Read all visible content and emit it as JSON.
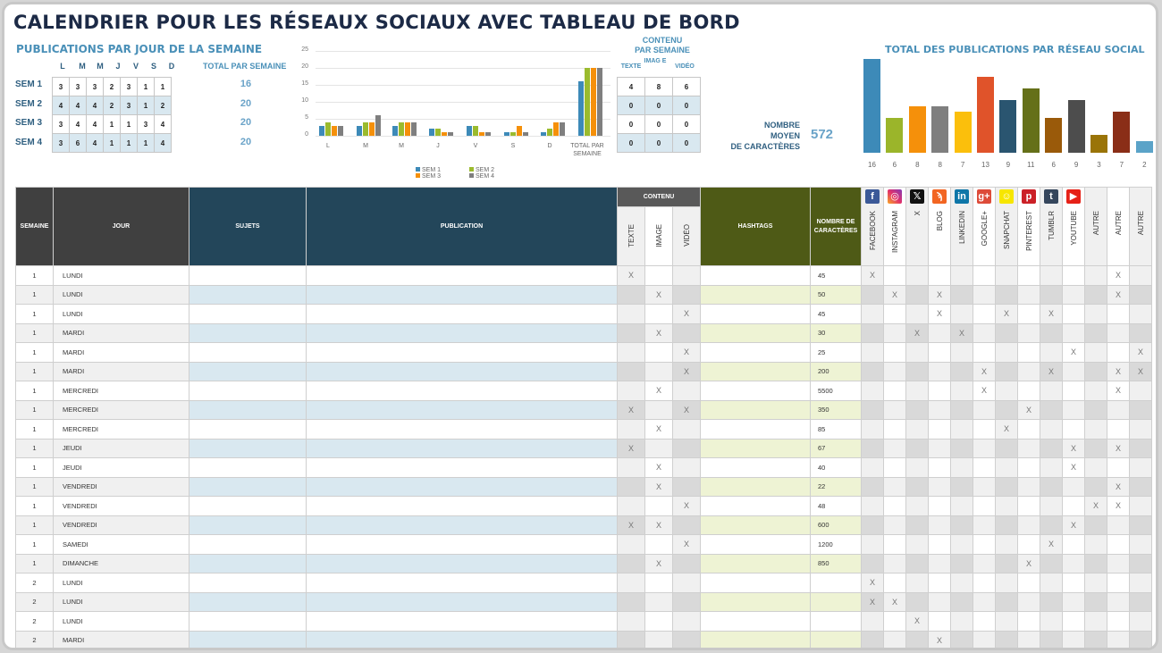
{
  "title": "CALENDRIER POUR LES RÉSEAUX SOCIAUX AVEC TABLEAU DE BORD",
  "weekday_summary": {
    "title": "PUBLICATIONS PAR JOUR DE LA SEMAINE",
    "days": [
      "L",
      "M",
      "M",
      "J",
      "V",
      "S",
      "D"
    ],
    "total_header": "TOTAL PAR SEMAINE",
    "weeks": [
      {
        "label": "SEM 1",
        "values": [
          3,
          3,
          3,
          2,
          3,
          1,
          1
        ],
        "total": 16
      },
      {
        "label": "SEM 2",
        "values": [
          4,
          4,
          4,
          2,
          3,
          1,
          2
        ],
        "total": 20
      },
      {
        "label": "SEM 3",
        "values": [
          3,
          4,
          4,
          1,
          1,
          3,
          4
        ],
        "total": 20
      },
      {
        "label": "SEM 4",
        "values": [
          3,
          6,
          4,
          1,
          1,
          1,
          4
        ],
        "total": 20
      }
    ]
  },
  "content_per_week": {
    "title_line1": "CONTENU",
    "title_line2": "PAR SEMAINE",
    "headers": [
      "TEXTE",
      "IMAG E",
      "VIDÉO"
    ],
    "rows": [
      [
        4,
        8,
        6
      ],
      [
        0,
        0,
        0
      ],
      [
        0,
        0,
        0
      ],
      [
        0,
        0,
        0
      ]
    ]
  },
  "average_chars": {
    "label_line1": "NOMBRE",
    "label_line2": "MOYEN",
    "label_line3": "DE CARACTÈRES",
    "value": "572"
  },
  "network_chart": {
    "title": "TOTAL DES PUBLICATIONS PAR RÉSEAU SOCIAL"
  },
  "chart_data": [
    {
      "type": "bar",
      "title": "",
      "categories": [
        "L",
        "M",
        "M",
        "J",
        "V",
        "S",
        "D",
        "TOTAL PAR SEMAINE"
      ],
      "series": [
        {
          "name": "SEM 1",
          "color": "#3d8ab8",
          "values": [
            3,
            3,
            3,
            2,
            3,
            1,
            1,
            16
          ]
        },
        {
          "name": "SEM 2",
          "color": "#9bbb2e",
          "values": [
            4,
            4,
            4,
            2,
            3,
            1,
            2,
            20
          ]
        },
        {
          "name": "SEM 3",
          "color": "#f5900a",
          "values": [
            3,
            4,
            4,
            1,
            1,
            3,
            4,
            20
          ]
        },
        {
          "name": "SEM 4",
          "color": "#7f7f7f",
          "values": [
            3,
            6,
            4,
            1,
            1,
            1,
            4,
            20
          ]
        }
      ],
      "yticks": [
        0,
        5,
        10,
        15,
        20,
        25
      ],
      "ylim": [
        0,
        25
      ],
      "grid": true,
      "legend_position": "bottom"
    },
    {
      "type": "bar",
      "title": "TOTAL DES PUBLICATIONS PAR RÉSEAU SOCIAL",
      "categories": [
        "FACEBOOK",
        "INSTAGRAM",
        "X",
        "BLOG",
        "LINKEDIN",
        "GOOGLE+",
        "SNAPCHAT",
        "PINTEREST",
        "TUMBLR",
        "YOUTUBE",
        "AUTRE",
        "AUTRE",
        "AUTRE"
      ],
      "values": [
        16,
        6,
        8,
        8,
        7,
        13,
        9,
        11,
        6,
        9,
        3,
        7,
        2
      ],
      "colors": [
        "#3d8ab8",
        "#9bb52a",
        "#f5900a",
        "#7f7f7f",
        "#fbbf0c",
        "#e0532a",
        "#2a5570",
        "#657019",
        "#9a5a0a",
        "#4d4d4d",
        "#9a7408",
        "#8a2e17",
        "#5ba3c8"
      ],
      "data_labels": true
    }
  ],
  "table": {
    "headers": {
      "semaine": "SEMAINE",
      "jour": "JOUR",
      "sujets": "SUJETS",
      "publication": "PUBLICATION",
      "contenu": "CONTENU",
      "texte": "TEXTE",
      "image": "IMAGE",
      "video": "VIDÉO",
      "hashtags": "HASHTAGS",
      "nombre": "NOMBRE DE CARACTÈRES"
    },
    "networks": [
      {
        "label": "FACEBOOK",
        "icon": "facebook-icon",
        "glyph": "f",
        "color": "#3b5998"
      },
      {
        "label": "INSTAGRAM",
        "icon": "instagram-icon",
        "glyph": "◎",
        "color": "#c13584"
      },
      {
        "label": "X",
        "icon": "x-icon",
        "glyph": "𝕏",
        "color": "#111111"
      },
      {
        "label": "BLOG",
        "icon": "rss-icon",
        "glyph": "ϡ",
        "color": "#f26522"
      },
      {
        "label": "LINKEDIN",
        "icon": "linkedin-icon",
        "glyph": "in",
        "color": "#0e76a8"
      },
      {
        "label": "GOOGLE+",
        "icon": "google-plus-icon",
        "glyph": "g+",
        "color": "#dd4b39"
      },
      {
        "label": "SNAPCHAT",
        "icon": "snapchat-icon",
        "glyph": "☺",
        "color": "#f7e600"
      },
      {
        "label": "PINTEREST",
        "icon": "pinterest-icon",
        "glyph": "p",
        "color": "#cb2027"
      },
      {
        "label": "TUMBLR",
        "icon": "tumblr-icon",
        "glyph": "t",
        "color": "#35465c"
      },
      {
        "label": "YOUTUBE",
        "icon": "youtube-icon",
        "glyph": "▶",
        "color": "#e62117"
      },
      {
        "label": "AUTRE",
        "icon": "",
        "glyph": "",
        "color": ""
      },
      {
        "label": "AUTRE",
        "icon": "",
        "glyph": "",
        "color": ""
      },
      {
        "label": "AUTRE",
        "icon": "",
        "glyph": "",
        "color": ""
      }
    ],
    "mark": "X",
    "rows": [
      {
        "semaine": "1",
        "jour": "LUNDI",
        "sujets": "",
        "publication": "",
        "contenu": [
          1,
          0,
          0
        ],
        "hashtags": "",
        "nombre": "45",
        "social": [
          1,
          0,
          0,
          0,
          0,
          0,
          0,
          0,
          0,
          0,
          0,
          1,
          0
        ]
      },
      {
        "semaine": "1",
        "jour": "LUNDI",
        "sujets": "",
        "publication": "",
        "contenu": [
          0,
          1,
          0
        ],
        "hashtags": "",
        "nombre": "50",
        "social": [
          0,
          1,
          0,
          1,
          0,
          0,
          0,
          0,
          0,
          0,
          0,
          1,
          0
        ]
      },
      {
        "semaine": "1",
        "jour": "LUNDI",
        "sujets": "",
        "publication": "",
        "contenu": [
          0,
          0,
          1
        ],
        "hashtags": "",
        "nombre": "45",
        "social": [
          0,
          0,
          0,
          1,
          0,
          0,
          1,
          0,
          1,
          0,
          0,
          0,
          0
        ]
      },
      {
        "semaine": "1",
        "jour": "MARDI",
        "sujets": "",
        "publication": "",
        "contenu": [
          0,
          1,
          0
        ],
        "hashtags": "",
        "nombre": "30",
        "social": [
          0,
          0,
          1,
          0,
          1,
          0,
          0,
          0,
          0,
          0,
          0,
          0,
          0
        ]
      },
      {
        "semaine": "1",
        "jour": "MARDI",
        "sujets": "",
        "publication": "",
        "contenu": [
          0,
          0,
          1
        ],
        "hashtags": "",
        "nombre": "25",
        "social": [
          0,
          0,
          0,
          0,
          0,
          0,
          0,
          0,
          0,
          1,
          0,
          0,
          1
        ]
      },
      {
        "semaine": "1",
        "jour": "MARDI",
        "sujets": "",
        "publication": "",
        "contenu": [
          0,
          0,
          1
        ],
        "hashtags": "",
        "nombre": "200",
        "social": [
          0,
          0,
          0,
          0,
          0,
          1,
          0,
          0,
          1,
          0,
          0,
          1,
          1
        ]
      },
      {
        "semaine": "1",
        "jour": "MERCREDI",
        "sujets": "",
        "publication": "",
        "contenu": [
          0,
          1,
          0
        ],
        "hashtags": "",
        "nombre": "5500",
        "social": [
          0,
          0,
          0,
          0,
          0,
          1,
          0,
          0,
          0,
          0,
          0,
          1,
          0
        ]
      },
      {
        "semaine": "1",
        "jour": "MERCREDI",
        "sujets": "",
        "publication": "",
        "contenu": [
          1,
          0,
          1
        ],
        "hashtags": "",
        "nombre": "350",
        "social": [
          0,
          0,
          0,
          0,
          0,
          0,
          0,
          1,
          0,
          0,
          0,
          0,
          0
        ]
      },
      {
        "semaine": "1",
        "jour": "MERCREDI",
        "sujets": "",
        "publication": "",
        "contenu": [
          0,
          1,
          0
        ],
        "hashtags": "",
        "nombre": "85",
        "social": [
          0,
          0,
          0,
          0,
          0,
          0,
          1,
          0,
          0,
          0,
          0,
          0,
          0
        ]
      },
      {
        "semaine": "1",
        "jour": "JEUDI",
        "sujets": "",
        "publication": "",
        "contenu": [
          1,
          0,
          0
        ],
        "hashtags": "",
        "nombre": "67",
        "social": [
          0,
          0,
          0,
          0,
          0,
          0,
          0,
          0,
          0,
          1,
          0,
          1,
          0
        ]
      },
      {
        "semaine": "1",
        "jour": "JEUDI",
        "sujets": "",
        "publication": "",
        "contenu": [
          0,
          1,
          0
        ],
        "hashtags": "",
        "nombre": "40",
        "social": [
          0,
          0,
          0,
          0,
          0,
          0,
          0,
          0,
          0,
          1,
          0,
          0,
          0
        ]
      },
      {
        "semaine": "1",
        "jour": "VENDREDI",
        "sujets": "",
        "publication": "",
        "contenu": [
          0,
          1,
          0
        ],
        "hashtags": "",
        "nombre": "22",
        "social": [
          0,
          0,
          0,
          0,
          0,
          0,
          0,
          0,
          0,
          0,
          0,
          1,
          0
        ]
      },
      {
        "semaine": "1",
        "jour": "VENDREDI",
        "sujets": "",
        "publication": "",
        "contenu": [
          0,
          0,
          1
        ],
        "hashtags": "",
        "nombre": "48",
        "social": [
          0,
          0,
          0,
          0,
          0,
          0,
          0,
          0,
          0,
          0,
          1,
          1,
          0
        ]
      },
      {
        "semaine": "1",
        "jour": "VENDREDI",
        "sujets": "",
        "publication": "",
        "contenu": [
          1,
          1,
          0
        ],
        "hashtags": "",
        "nombre": "600",
        "social": [
          0,
          0,
          0,
          0,
          0,
          0,
          0,
          0,
          0,
          1,
          0,
          0,
          0
        ]
      },
      {
        "semaine": "1",
        "jour": "SAMEDI",
        "sujets": "",
        "publication": "",
        "contenu": [
          0,
          0,
          1
        ],
        "hashtags": "",
        "nombre": "1200",
        "social": [
          0,
          0,
          0,
          0,
          0,
          0,
          0,
          0,
          1,
          0,
          0,
          0,
          0
        ]
      },
      {
        "semaine": "1",
        "jour": "DIMANCHE",
        "sujets": "",
        "publication": "",
        "contenu": [
          0,
          1,
          0
        ],
        "hashtags": "",
        "nombre": "850",
        "social": [
          0,
          0,
          0,
          0,
          0,
          0,
          0,
          1,
          0,
          0,
          0,
          0,
          0
        ]
      },
      {
        "semaine": "2",
        "jour": "LUNDI",
        "sujets": "",
        "publication": "",
        "contenu": [
          0,
          0,
          0
        ],
        "hashtags": "",
        "nombre": "",
        "social": [
          1,
          0,
          0,
          0,
          0,
          0,
          0,
          0,
          0,
          0,
          0,
          0,
          0
        ]
      },
      {
        "semaine": "2",
        "jour": "LUNDI",
        "sujets": "",
        "publication": "",
        "contenu": [
          0,
          0,
          0
        ],
        "hashtags": "",
        "nombre": "",
        "social": [
          1,
          1,
          0,
          0,
          0,
          0,
          0,
          0,
          0,
          0,
          0,
          0,
          0
        ]
      },
      {
        "semaine": "2",
        "jour": "LUNDI",
        "sujets": "",
        "publication": "",
        "contenu": [
          0,
          0,
          0
        ],
        "hashtags": "",
        "nombre": "",
        "social": [
          0,
          0,
          1,
          0,
          0,
          0,
          0,
          0,
          0,
          0,
          0,
          0,
          0
        ]
      },
      {
        "semaine": "2",
        "jour": "MARDI",
        "sujets": "",
        "publication": "",
        "contenu": [
          0,
          0,
          0
        ],
        "hashtags": "",
        "nombre": "",
        "social": [
          0,
          0,
          0,
          1,
          0,
          0,
          0,
          0,
          0,
          0,
          0,
          0,
          0
        ]
      },
      {
        "semaine": "",
        "jour": "",
        "sujets": "",
        "publication": "",
        "contenu": [
          0,
          0,
          0
        ],
        "hashtags": "",
        "nombre": "",
        "social": [
          0,
          0,
          0,
          0,
          0,
          0,
          0,
          0,
          0,
          0,
          0,
          0,
          0
        ]
      }
    ]
  }
}
